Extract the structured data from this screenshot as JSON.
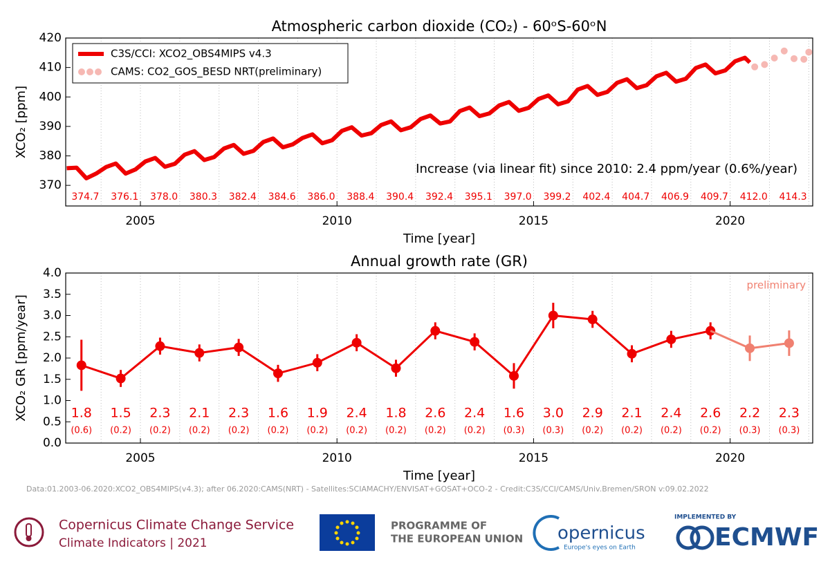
{
  "chart_data": [
    {
      "type": "line",
      "title": "Atmospheric carbon dioxide (CO₂) - 60ᵒS-60ᵒN",
      "x_label": "Time [year]",
      "y_label": "XCO₂ [ppm]",
      "xlim": [
        2003.1,
        2022.1
      ],
      "ylim": [
        363,
        420
      ],
      "xticks": [
        2005,
        2010,
        2015,
        2020
      ],
      "yticks": [
        370,
        380,
        390,
        400,
        410,
        420
      ],
      "xminorticks": [
        2004,
        2005,
        2006,
        2007,
        2008,
        2009,
        2010,
        2011,
        2012,
        2013,
        2014,
        2015,
        2016,
        2017,
        2018,
        2019,
        2020,
        2021,
        2022
      ],
      "legend": "upper left",
      "annotation": "Increase (via linear fit) since 2010: 2.4 ppm/year (0.6%/year)",
      "series": [
        {
          "name": "C3S/CCI: XCO2_OBS4MIPS v4.3",
          "color": "#ee0000",
          "style": "line",
          "x": [
            2003.125,
            2003.375,
            2003.625,
            2003.875,
            2004.125,
            2004.375,
            2004.625,
            2004.875,
            2005.125,
            2005.375,
            2005.625,
            2005.875,
            2006.125,
            2006.375,
            2006.625,
            2006.875,
            2007.125,
            2007.375,
            2007.625,
            2007.875,
            2008.125,
            2008.375,
            2008.625,
            2008.875,
            2009.125,
            2009.375,
            2009.625,
            2009.875,
            2010.125,
            2010.375,
            2010.625,
            2010.875,
            2011.125,
            2011.375,
            2011.625,
            2011.875,
            2012.125,
            2012.375,
            2012.625,
            2012.875,
            2013.125,
            2013.375,
            2013.625,
            2013.875,
            2014.125,
            2014.375,
            2014.625,
            2014.875,
            2015.125,
            2015.375,
            2015.625,
            2015.875,
            2016.125,
            2016.375,
            2016.625,
            2016.875,
            2017.125,
            2017.375,
            2017.625,
            2017.875,
            2018.125,
            2018.375,
            2018.625,
            2018.875,
            2019.125,
            2019.375,
            2019.625,
            2019.875,
            2020.125,
            2020.375,
            2020.5
          ],
          "values": [
            375.8,
            376.0,
            372.4,
            374.0,
            376.2,
            377.4,
            374.0,
            375.4,
            378.1,
            379.3,
            376.3,
            377.3,
            380.4,
            381.6,
            378.6,
            379.6,
            382.5,
            383.7,
            380.7,
            381.7,
            384.7,
            385.9,
            382.9,
            383.9,
            386.1,
            387.3,
            384.3,
            385.3,
            388.5,
            389.7,
            386.9,
            387.7,
            390.5,
            391.7,
            388.7,
            389.7,
            392.5,
            393.7,
            391.0,
            391.7,
            395.2,
            396.4,
            393.5,
            394.4,
            397.1,
            398.3,
            395.3,
            396.3,
            399.3,
            400.5,
            397.5,
            398.5,
            402.5,
            403.7,
            400.7,
            401.7,
            404.8,
            406.0,
            403.0,
            404.0,
            407.0,
            408.2,
            405.2,
            406.2,
            409.8,
            411.0,
            408.0,
            409.0,
            412.1,
            413.3,
            411.7
          ]
        },
        {
          "name": "CAMS: CO2_GOS_BESD NRT(preliminary)",
          "color": "#f4a6a0",
          "style": "dots",
          "x": [
            2020.625,
            2020.875,
            2021.125,
            2021.375,
            2021.625,
            2021.875,
            2022.0
          ],
          "values": [
            410.2,
            411.0,
            413.2,
            415.6,
            413.0,
            412.8,
            415.2
          ]
        }
      ],
      "annual_means": {
        "values": [
          374.7,
          376.1,
          378.0,
          380.3,
          382.4,
          384.6,
          386.0,
          388.4,
          390.4,
          392.4,
          395.1,
          397.0,
          399.2,
          402.4,
          404.7,
          406.9,
          409.7,
          412.0,
          414.3
        ],
        "value_labels": [
          "374.7",
          "376.1",
          "378.0",
          "380.3",
          "382.4",
          "384.6",
          "386.0",
          "388.4",
          "390.4",
          "392.4",
          "395.1",
          "397.0",
          "399.2",
          "402.4",
          "404.7",
          "406.9",
          "409.7",
          "412.0",
          "414.3"
        ],
        "color": "#ee0000"
      }
    },
    {
      "type": "errorline",
      "title": "Annual growth rate (GR)",
      "x_label": "Time [year]",
      "y_label": "XCO₂ GR [ppm/year]",
      "xlim": [
        2003.1,
        2022.1
      ],
      "ylim": [
        0,
        4
      ],
      "xticks": [
        2005,
        2010,
        2015,
        2020
      ],
      "yticks": [
        {
          "value": 0,
          "label": "0.0"
        },
        0.5,
        {
          "value": 1,
          "label": "1.0"
        },
        1.5,
        {
          "value": 2,
          "label": "2.0"
        },
        2.5,
        {
          "value": 3,
          "label": "3.0"
        },
        3.5,
        {
          "value": 4,
          "label": "4.0"
        }
      ],
      "xminorticks": [
        2004,
        2005,
        2006,
        2007,
        2008,
        2009,
        2010,
        2011,
        2012,
        2013,
        2014,
        2015,
        2016,
        2017,
        2018,
        2019,
        2020,
        2021,
        2022
      ],
      "annotation": "preliminary",
      "series": [
        {
          "color": "#ee0000",
          "x": [
            2003.5,
            2004.5,
            2005.5,
            2006.5,
            2007.5,
            2008.5,
            2009.5,
            2010.5,
            2011.5,
            2012.5,
            2013.5,
            2014.5,
            2015.5,
            2016.5,
            2017.5,
            2018.5,
            2019.5
          ],
          "values": [
            1.83,
            1.52,
            2.28,
            2.12,
            2.25,
            1.64,
            1.89,
            2.36,
            1.76,
            2.64,
            2.38,
            1.58,
            3.0,
            2.91,
            2.1,
            2.44,
            2.64
          ],
          "value_labels": [
            "1.8",
            "1.5",
            "2.3",
            "2.1",
            "2.3",
            "1.6",
            "1.9",
            "2.4",
            "1.8",
            "2.6",
            "2.4",
            "1.6",
            "3.0",
            "2.9",
            "2.1",
            "2.4",
            "2.6"
          ],
          "errors": [
            0.6,
            0.2,
            0.2,
            0.2,
            0.2,
            0.2,
            0.2,
            0.2,
            0.2,
            0.2,
            0.2,
            0.3,
            0.3,
            0.2,
            0.2,
            0.2,
            0.2
          ],
          "error_labels": [
            "(0.6)",
            "(0.2)",
            "(0.2)",
            "(0.2)",
            "(0.2)",
            "(0.2)",
            "(0.2)",
            "(0.2)",
            "(0.2)",
            "(0.2)",
            "(0.2)",
            "(0.3)",
            "(0.3)",
            "(0.2)",
            "(0.2)",
            "(0.2)",
            "(0.2)"
          ]
        },
        {
          "color": "#f08070",
          "x": [
            2020.5,
            2021.5
          ],
          "values": [
            2.23,
            2.35
          ],
          "value_labels": [
            "2.2",
            "2.3"
          ],
          "errors": [
            0.3,
            0.3
          ],
          "error_labels": [
            "(0.3)",
            "(0.3)"
          ]
        }
      ]
    }
  ],
  "footer": {
    "credit": "Data:01.2003-06.2020:XCO2_OBS4MIPS(v4.3); after 06.2020:CAMS(NRT) - Satellites:SCIAMACHY/ENVISAT+GOSAT+OCO-2 - Credit:C3S/CCI/CAMS/Univ.Bremen/SRON v:09.02.2022",
    "c3s_line1": "Copernicus Climate Change Service",
    "c3s_line2": "Climate Indicators | 2021",
    "eu_line1": "PROGRAMME OF",
    "eu_line2": "THE EUROPEAN UNION",
    "copernicus": "opernicus",
    "copernicus_tag": "Europe's eyes on Earth",
    "implemented": "IMPLEMENTED BY",
    "ecmwf": "ECMWF"
  }
}
